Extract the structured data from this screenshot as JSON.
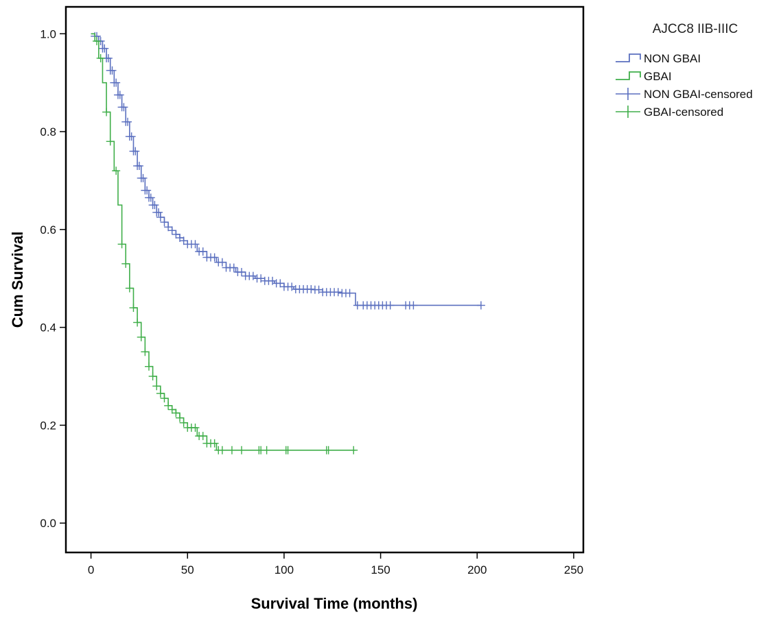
{
  "chart_data": {
    "type": "line",
    "subtype": "kaplan-meier",
    "title": "",
    "xlabel": "Survival Time (months)",
    "ylabel": "Cum Survival",
    "xlim": [
      -13,
      255
    ],
    "ylim": [
      -0.06,
      1.055
    ],
    "xticks": [
      0,
      50,
      100,
      150,
      200,
      250
    ],
    "yticks": [
      0.0,
      0.2,
      0.4,
      0.6,
      0.8,
      1.0
    ],
    "xtick_labels": [
      "0",
      "50",
      "100",
      "150",
      "200",
      "250"
    ],
    "ytick_labels": [
      "0.0",
      "0.2",
      "0.4",
      "0.6",
      "0.8",
      "1.0"
    ],
    "grid": false,
    "legend": {
      "title": "AJCC8 IIB-IIIC",
      "position": "outside-right-top",
      "entries": [
        {
          "label": "NON GBAI",
          "kind": "step",
          "color": "#5a6fbf"
        },
        {
          "label": "GBAI",
          "kind": "step",
          "color": "#3fae49"
        },
        {
          "label": "NON GBAI-censored",
          "kind": "censor",
          "color": "#5a6fbf"
        },
        {
          "label": "GBAI-censored",
          "kind": "censor",
          "color": "#3fae49"
        }
      ]
    },
    "series": [
      {
        "name": "NON GBAI",
        "color": "#5a6fbf",
        "x": [
          0,
          2,
          4,
          6,
          8,
          10,
          12,
          14,
          16,
          18,
          20,
          22,
          24,
          26,
          28,
          30,
          32,
          34,
          36,
          38,
          40,
          42,
          44,
          46,
          48,
          50,
          55,
          60,
          65,
          70,
          75,
          80,
          85,
          90,
          95,
          100,
          105,
          110,
          115,
          120,
          125,
          130,
          137,
          202
        ],
        "y": [
          1.0,
          0.995,
          0.985,
          0.97,
          0.95,
          0.925,
          0.9,
          0.875,
          0.85,
          0.82,
          0.79,
          0.76,
          0.73,
          0.705,
          0.68,
          0.665,
          0.65,
          0.635,
          0.625,
          0.615,
          0.605,
          0.598,
          0.59,
          0.583,
          0.577,
          0.57,
          0.555,
          0.543,
          0.533,
          0.522,
          0.513,
          0.505,
          0.5,
          0.495,
          0.49,
          0.483,
          0.478,
          0.478,
          0.477,
          0.472,
          0.472,
          0.47,
          0.445,
          0.445
        ],
        "censored_x": [
          2,
          3,
          4,
          5,
          6,
          7,
          8,
          9,
          10,
          11,
          12,
          13,
          14,
          15,
          16,
          17,
          18,
          19,
          20,
          21,
          22,
          23,
          24,
          25,
          26,
          27,
          28,
          29,
          30,
          31,
          32,
          33,
          34,
          35,
          36,
          38,
          40,
          42,
          44,
          46,
          48,
          50,
          52,
          54,
          56,
          58,
          60,
          62,
          64,
          66,
          68,
          70,
          72,
          74,
          76,
          78,
          80,
          82,
          84,
          86,
          88,
          90,
          92,
          94,
          96,
          98,
          100,
          102,
          104,
          106,
          108,
          110,
          112,
          114,
          116,
          118,
          120,
          122,
          124,
          126,
          128,
          130,
          132,
          134,
          138,
          141,
          143,
          145,
          147,
          149,
          151,
          153,
          155,
          163,
          165,
          167,
          202
        ]
      },
      {
        "name": "GBAI",
        "color": "#3fae49",
        "x": [
          0,
          2,
          4,
          6,
          8,
          10,
          12,
          14,
          16,
          18,
          20,
          22,
          24,
          26,
          28,
          30,
          32,
          34,
          36,
          38,
          40,
          42,
          44,
          46,
          48,
          50,
          55,
          60,
          65,
          137
        ],
        "y": [
          1.0,
          0.985,
          0.95,
          0.9,
          0.84,
          0.78,
          0.72,
          0.65,
          0.57,
          0.53,
          0.48,
          0.44,
          0.41,
          0.38,
          0.35,
          0.32,
          0.3,
          0.28,
          0.265,
          0.255,
          0.24,
          0.232,
          0.225,
          0.215,
          0.205,
          0.195,
          0.178,
          0.163,
          0.149,
          0.149
        ],
        "censored_x": [
          3,
          5,
          8,
          10,
          13,
          16,
          18,
          20,
          22,
          24,
          26,
          28,
          30,
          32,
          34,
          36,
          38,
          40,
          42,
          44,
          46,
          48,
          50,
          52,
          54,
          56,
          58,
          60,
          62,
          64,
          66,
          68,
          73,
          78,
          87,
          88,
          91,
          101,
          102,
          122,
          123,
          136
        ]
      }
    ]
  }
}
